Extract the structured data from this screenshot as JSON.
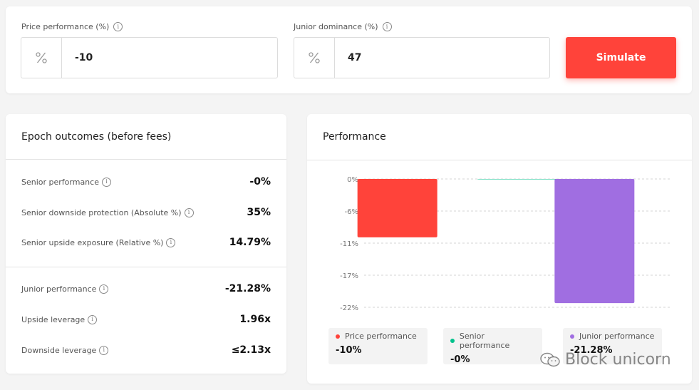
{
  "inputs": {
    "price_performance": {
      "label": "Price performance (%)",
      "prefix": "%",
      "value": "-10"
    },
    "junior_dominance": {
      "label": "Junior dominance (%)",
      "prefix": "%",
      "value": "47"
    },
    "simulate_label": "Simulate"
  },
  "outcomes": {
    "title": "Epoch outcomes (before fees)",
    "senior": [
      {
        "label": "Senior performance",
        "value": "-0%"
      },
      {
        "label": "Senior downside protection (Absolute %)",
        "value": "35%"
      },
      {
        "label": "Senior upside exposure (Relative %)",
        "value": "14.79%"
      }
    ],
    "junior": [
      {
        "label": "Junior performance",
        "value": "-21.28%"
      },
      {
        "label": "Upside leverage",
        "value": "1.96x"
      },
      {
        "label": "Downside leverage",
        "value": "≤2.13x"
      }
    ]
  },
  "performance": {
    "title": "Performance",
    "legend": [
      {
        "name": "Price performance",
        "value": "-10%",
        "color": "#ff433a"
      },
      {
        "name": "Senior performance",
        "value": "-0%",
        "color": "#00c28c"
      },
      {
        "name": "Junior performance",
        "value": "-21.28%",
        "color": "#a06ee1"
      }
    ]
  },
  "chart_data": {
    "type": "bar",
    "categories": [
      "Price performance",
      "Senior performance",
      "Junior performance"
    ],
    "values": [
      -10,
      0,
      -21.28
    ],
    "colors": [
      "#ff433a",
      "#00c28c",
      "#a06ee1"
    ],
    "y_ticks": [
      "0%",
      "-6%",
      "-11%",
      "-17%",
      "-22%"
    ],
    "y_tick_values": [
      0,
      -5.5,
      -11,
      -16.5,
      -22
    ],
    "ylim": [
      -22,
      0
    ],
    "grid": true
  },
  "watermark": {
    "text": "Block unicorn"
  }
}
